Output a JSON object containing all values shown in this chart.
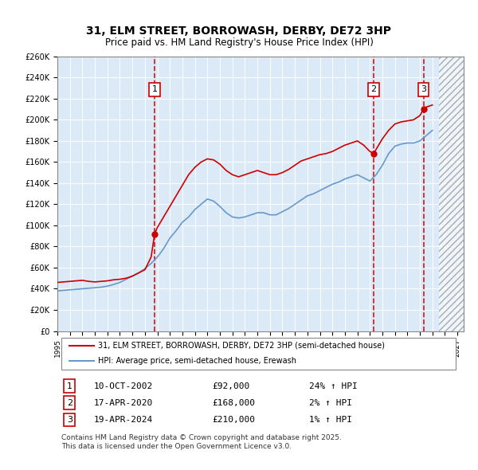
{
  "title": "31, ELM STREET, BORROWASH, DERBY, DE72 3HP",
  "subtitle": "Price paid vs. HM Land Registry's House Price Index (HPI)",
  "ylabel": "",
  "xlabel": "",
  "ylim": [
    0,
    260000
  ],
  "xlim_start": 1995.0,
  "xlim_end": 2027.5,
  "yticks": [
    0,
    20000,
    40000,
    60000,
    80000,
    100000,
    120000,
    140000,
    160000,
    180000,
    200000,
    220000,
    240000,
    260000
  ],
  "ytick_labels": [
    "£0",
    "£20K",
    "£40K",
    "£60K",
    "£80K",
    "£100K",
    "£120K",
    "£140K",
    "£160K",
    "£180K",
    "£200K",
    "£220K",
    "£240K",
    "£260K"
  ],
  "xticks": [
    1995,
    1996,
    1997,
    1998,
    1999,
    2000,
    2001,
    2002,
    2003,
    2004,
    2005,
    2006,
    2007,
    2008,
    2009,
    2010,
    2011,
    2012,
    2013,
    2014,
    2015,
    2016,
    2017,
    2018,
    2019,
    2020,
    2021,
    2022,
    2023,
    2024,
    2025,
    2026,
    2027
  ],
  "background_color": "#dce9f7",
  "plot_bg_color": "#dce9f7",
  "red_line_color": "#cc0000",
  "blue_line_color": "#6699cc",
  "vline_color": "#cc0000",
  "sale_years": [
    2002.78,
    2020.29,
    2024.29
  ],
  "sale_prices": [
    92000,
    168000,
    210000
  ],
  "sale_labels": [
    "1",
    "2",
    "3"
  ],
  "sale_dates": [
    "10-OCT-2002",
    "17-APR-2020",
    "19-APR-2024"
  ],
  "sale_price_strs": [
    "£92,000",
    "£168,000",
    "£210,000"
  ],
  "sale_hpi_strs": [
    "24% ↑ HPI",
    "2% ↑ HPI",
    "1% ↑ HPI"
  ],
  "legend_line1": "31, ELM STREET, BORROWASH, DERBY, DE72 3HP (semi-detached house)",
  "legend_line2": "HPI: Average price, semi-detached house, Erewash",
  "copyright": "Contains HM Land Registry data © Crown copyright and database right 2025.\nThis data is licensed under the Open Government Licence v3.0.",
  "hatch_start": 2025.5,
  "red_line_x": [
    1995.0,
    1995.5,
    1996.0,
    1996.5,
    1997.0,
    1997.5,
    1998.0,
    1998.5,
    1999.0,
    1999.5,
    2000.0,
    2000.5,
    2001.0,
    2001.5,
    2002.0,
    2002.5,
    2002.78,
    2003.0,
    2003.5,
    2004.0,
    2004.5,
    2005.0,
    2005.5,
    2006.0,
    2006.5,
    2007.0,
    2007.5,
    2008.0,
    2008.5,
    2009.0,
    2009.5,
    2010.0,
    2010.5,
    2011.0,
    2011.5,
    2012.0,
    2012.5,
    2013.0,
    2013.5,
    2014.0,
    2014.5,
    2015.0,
    2015.5,
    2016.0,
    2016.5,
    2017.0,
    2017.5,
    2018.0,
    2018.5,
    2019.0,
    2019.5,
    2020.0,
    2020.29,
    2020.5,
    2021.0,
    2021.5,
    2022.0,
    2022.5,
    2023.0,
    2023.5,
    2024.0,
    2024.29,
    2024.5,
    2025.0
  ],
  "red_line_y": [
    46000,
    46500,
    47000,
    47500,
    48000,
    47000,
    46500,
    47000,
    47500,
    48500,
    49000,
    50000,
    52000,
    55000,
    58000,
    70000,
    92000,
    98000,
    108000,
    118000,
    128000,
    138000,
    148000,
    155000,
    160000,
    163000,
    162000,
    158000,
    152000,
    148000,
    146000,
    148000,
    150000,
    152000,
    150000,
    148000,
    148000,
    150000,
    153000,
    157000,
    161000,
    163000,
    165000,
    167000,
    168000,
    170000,
    173000,
    176000,
    178000,
    180000,
    176000,
    170000,
    168000,
    172000,
    182000,
    190000,
    196000,
    198000,
    199000,
    200000,
    204000,
    210000,
    212000,
    214000
  ],
  "blue_line_x": [
    1995.0,
    1995.5,
    1996.0,
    1996.5,
    1997.0,
    1997.5,
    1998.0,
    1998.5,
    1999.0,
    1999.5,
    2000.0,
    2000.5,
    2001.0,
    2001.5,
    2002.0,
    2002.5,
    2003.0,
    2003.5,
    2004.0,
    2004.5,
    2005.0,
    2005.5,
    2006.0,
    2006.5,
    2007.0,
    2007.5,
    2008.0,
    2008.5,
    2009.0,
    2009.5,
    2010.0,
    2010.5,
    2011.0,
    2011.5,
    2012.0,
    2012.5,
    2013.0,
    2013.5,
    2014.0,
    2014.5,
    2015.0,
    2015.5,
    2016.0,
    2016.5,
    2017.0,
    2017.5,
    2018.0,
    2018.5,
    2019.0,
    2019.5,
    2020.0,
    2020.5,
    2021.0,
    2021.5,
    2022.0,
    2022.5,
    2023.0,
    2023.5,
    2024.0,
    2024.5,
    2025.0
  ],
  "blue_line_y": [
    38000,
    38500,
    39000,
    39500,
    40000,
    40500,
    41000,
    41500,
    42500,
    44000,
    46000,
    49000,
    52000,
    55000,
    59000,
    64000,
    70000,
    78000,
    88000,
    95000,
    103000,
    108000,
    115000,
    120000,
    125000,
    123000,
    118000,
    112000,
    108000,
    107000,
    108000,
    110000,
    112000,
    112000,
    110000,
    110000,
    113000,
    116000,
    120000,
    124000,
    128000,
    130000,
    133000,
    136000,
    139000,
    141000,
    144000,
    146000,
    148000,
    145000,
    142000,
    148000,
    157000,
    168000,
    175000,
    177000,
    178000,
    178000,
    180000,
    185000,
    190000
  ]
}
